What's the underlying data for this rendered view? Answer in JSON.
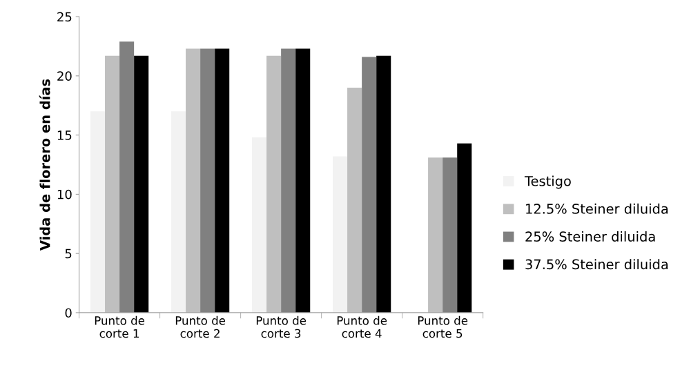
{
  "chart_data": {
    "type": "bar",
    "ylabel": "Vida de florero en días",
    "categories": [
      "Punto de\ncorte 1",
      "Punto de\ncorte 2",
      "Punto de\ncorte 3",
      "Punto de\ncorte 4",
      "Punto de\ncorte 5"
    ],
    "series": [
      {
        "name": "Testigo",
        "color": "#f2f2f2",
        "values": [
          17,
          17,
          14.8,
          13.2,
          null
        ]
      },
      {
        "name": "12.5% Steiner diluida",
        "color": "#bfbfbf",
        "values": [
          21.7,
          22.3,
          21.7,
          19,
          13.1
        ]
      },
      {
        "name": "25% Steiner diluida",
        "color": "#808080",
        "values": [
          22.9,
          22.3,
          22.3,
          21.6,
          13.1
        ]
      },
      {
        "name": "37.5% Steiner diluida",
        "color": "#000000",
        "values": [
          21.7,
          22.3,
          22.3,
          21.7,
          14.3
        ]
      }
    ],
    "ylim": [
      0,
      25
    ],
    "yticks": [
      0,
      5,
      10,
      15,
      20,
      25
    ],
    "grid": false,
    "legend": "right"
  }
}
